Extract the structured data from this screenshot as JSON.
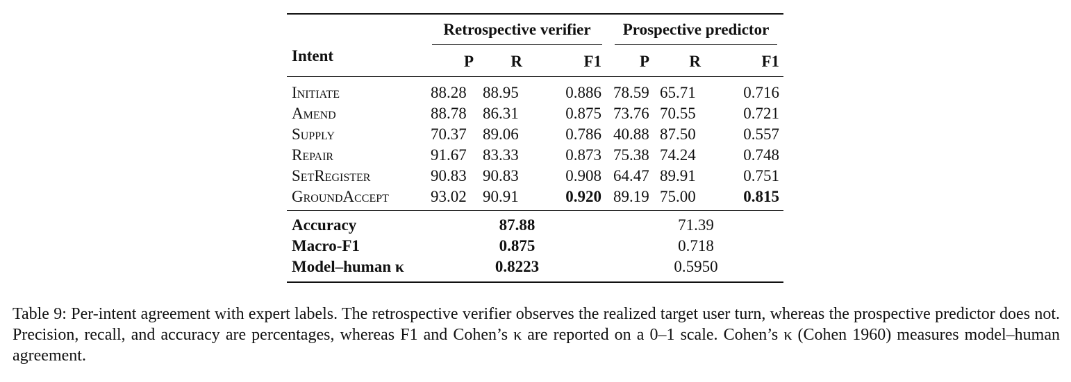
{
  "table": {
    "header": {
      "intent": "Intent",
      "groups": [
        "Retrospective verifier",
        "Prospective predictor"
      ],
      "columns": [
        "P",
        "R",
        "F1",
        "P",
        "R",
        "F1"
      ]
    },
    "rows": [
      [
        "Initiate",
        "88.28",
        "88.95",
        "0.886",
        "78.59",
        "65.71",
        "0.716"
      ],
      [
        "Amend",
        "88.78",
        "86.31",
        "0.875",
        "73.76",
        "70.55",
        "0.721"
      ],
      [
        "Supply",
        "70.37",
        "89.06",
        "0.786",
        "40.88",
        "87.50",
        "0.557"
      ],
      [
        "Repair",
        "91.67",
        "83.33",
        "0.873",
        "75.38",
        "74.24",
        "0.748"
      ],
      [
        "SetRegister",
        "90.83",
        "90.83",
        "0.908",
        "64.47",
        "89.91",
        "0.751"
      ],
      [
        "GroundAccept",
        "93.02",
        "90.91",
        "0.920",
        "89.19",
        "75.00",
        "0.815"
      ]
    ],
    "summary": [
      [
        "Accuracy",
        "87.88",
        "71.39"
      ],
      [
        "Macro-F1",
        "0.875",
        "0.718"
      ],
      [
        "Model–human κ",
        "0.8223",
        "0.5950"
      ]
    ]
  },
  "caption": "Table 9: Per-intent agreement with expert labels. The retrospective verifier observes the realized target user turn, whereas the prospective predictor does not. Precision, recall, and accuracy are percentages, whereas F1 and Cohen’s κ are reported on a 0–1 scale. Cohen’s κ (Cohen 1960) measures model–human agreement."
}
